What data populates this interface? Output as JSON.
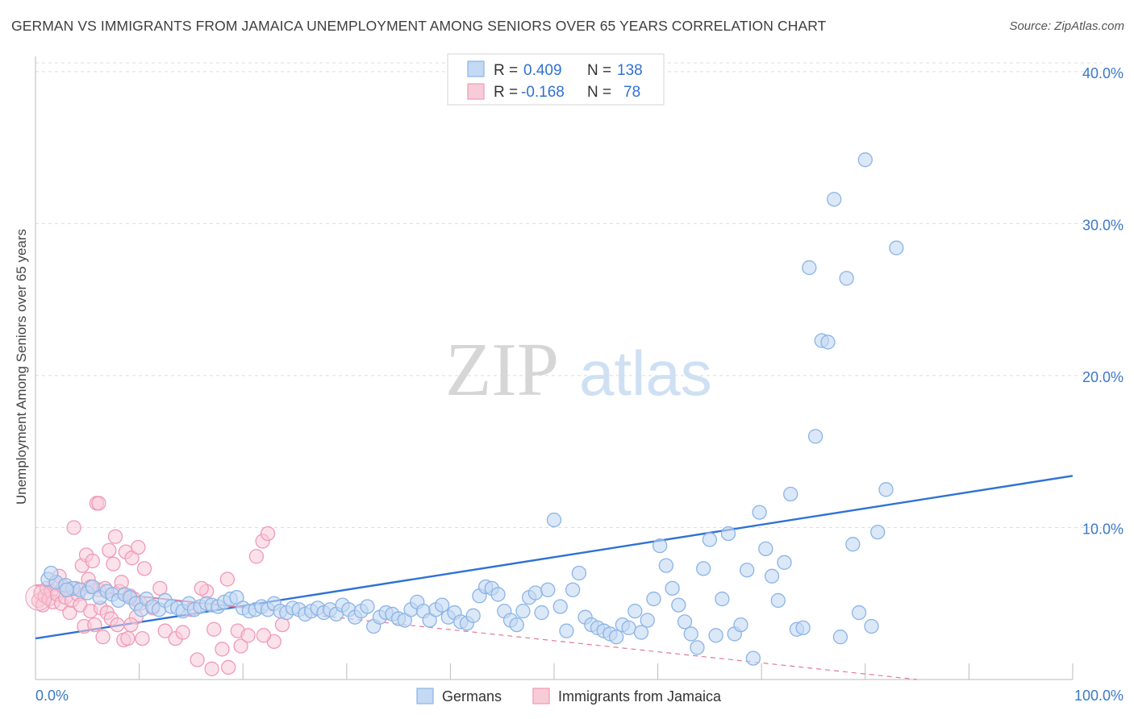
{
  "title": "GERMAN VS IMMIGRANTS FROM JAMAICA UNEMPLOYMENT AMONG SENIORS OVER 65 YEARS CORRELATION CHART",
  "source": "Source: ZipAtlas.com",
  "watermark": {
    "zip": "ZIP",
    "atlas": "atlas"
  },
  "colors": {
    "blue": "#8bb4e6",
    "blue_fill": "#c3d9f4",
    "blue_line": "#2f72d4",
    "pink": "#f09ab5",
    "pink_fill": "#f8cbd9",
    "pink_line": "#e37897",
    "value_text": "#2f72d4",
    "grid": "#dddddd"
  },
  "legend_top": {
    "rows": [
      {
        "r_label": "R =",
        "r_value": "0.409",
        "n_label": "N =",
        "n_value": "138"
      },
      {
        "r_label": "R =",
        "r_value": "-0.168",
        "n_label": "N =",
        "n_value": "78"
      }
    ]
  },
  "legend_bottom": {
    "items": [
      {
        "label": "Germans"
      },
      {
        "label": "Immigrants from Jamaica"
      }
    ]
  },
  "chart_data": {
    "type": "scatter",
    "title": "GERMAN VS IMMIGRANTS FROM JAMAICA UNEMPLOYMENT AMONG SENIORS OVER 65 YEARS CORRELATION CHART",
    "xlabel": "",
    "ylabel": "Unemployment Among Seniors over 65 years",
    "xlim": [
      0,
      100
    ],
    "ylim": [
      0,
      41
    ],
    "x_tick_labels": [
      "0.0%",
      "100.0%"
    ],
    "y_ticks": [
      10,
      20,
      30,
      40
    ],
    "y_tick_labels": [
      "10.0%",
      "20.0%",
      "30.0%",
      "40.0%"
    ],
    "grid": true,
    "legend_position": "top-center",
    "series": [
      {
        "name": "Germans",
        "color": "#8bb4e6",
        "r": 0.409,
        "n": 138,
        "trend": {
          "x": [
            0,
            100
          ],
          "y": [
            2.7,
            13.4
          ]
        },
        "points": [
          [
            1.2,
            6.6
          ],
          [
            2.0,
            6.4
          ],
          [
            2.9,
            6.2
          ],
          [
            3.6,
            6.0
          ],
          [
            4.3,
            5.9
          ],
          [
            5.0,
            5.7
          ],
          [
            5.5,
            6.1
          ],
          [
            6.2,
            5.4
          ],
          [
            6.9,
            5.8
          ],
          [
            7.4,
            5.6
          ],
          [
            8.0,
            5.2
          ],
          [
            8.6,
            5.6
          ],
          [
            9.1,
            5.4
          ],
          [
            9.7,
            5.0
          ],
          [
            10.2,
            4.6
          ],
          [
            10.7,
            5.3
          ],
          [
            11.3,
            4.8
          ],
          [
            11.9,
            4.6
          ],
          [
            12.5,
            5.2
          ],
          [
            13.1,
            4.8
          ],
          [
            13.7,
            4.7
          ],
          [
            14.2,
            4.5
          ],
          [
            14.8,
            5.0
          ],
          [
            15.3,
            4.6
          ],
          [
            15.9,
            4.8
          ],
          [
            16.5,
            5.0
          ],
          [
            17.0,
            4.9
          ],
          [
            17.6,
            4.8
          ],
          [
            18.2,
            5.1
          ],
          [
            18.8,
            5.3
          ],
          [
            19.4,
            5.4
          ],
          [
            20.0,
            4.7
          ],
          [
            20.6,
            4.5
          ],
          [
            21.2,
            4.6
          ],
          [
            21.8,
            4.8
          ],
          [
            22.4,
            4.6
          ],
          [
            23.0,
            5.0
          ],
          [
            23.6,
            4.5
          ],
          [
            24.2,
            4.4
          ],
          [
            24.8,
            4.7
          ],
          [
            25.4,
            4.6
          ],
          [
            26.0,
            4.3
          ],
          [
            26.6,
            4.5
          ],
          [
            27.2,
            4.7
          ],
          [
            27.8,
            4.4
          ],
          [
            28.4,
            4.6
          ],
          [
            29.0,
            4.3
          ],
          [
            29.6,
            4.9
          ],
          [
            30.2,
            4.6
          ],
          [
            30.8,
            4.1
          ],
          [
            31.4,
            4.5
          ],
          [
            32.0,
            4.8
          ],
          [
            32.6,
            3.5
          ],
          [
            33.2,
            4.1
          ],
          [
            33.8,
            4.4
          ],
          [
            34.4,
            4.3
          ],
          [
            35.0,
            4.0
          ],
          [
            35.6,
            3.9
          ],
          [
            36.2,
            4.6
          ],
          [
            36.8,
            5.1
          ],
          [
            37.4,
            4.5
          ],
          [
            38.0,
            3.9
          ],
          [
            38.6,
            4.6
          ],
          [
            39.2,
            4.9
          ],
          [
            39.8,
            4.1
          ],
          [
            40.4,
            4.4
          ],
          [
            41.0,
            3.8
          ],
          [
            41.6,
            3.7
          ],
          [
            42.2,
            4.2
          ],
          [
            42.8,
            5.5
          ],
          [
            43.4,
            6.1
          ],
          [
            44.0,
            6.0
          ],
          [
            44.6,
            5.6
          ],
          [
            45.2,
            4.5
          ],
          [
            45.8,
            3.9
          ],
          [
            46.4,
            3.6
          ],
          [
            47.0,
            4.5
          ],
          [
            47.6,
            5.4
          ],
          [
            48.2,
            5.7
          ],
          [
            48.8,
            4.4
          ],
          [
            49.4,
            5.9
          ],
          [
            50.0,
            10.5
          ],
          [
            50.6,
            4.8
          ],
          [
            51.2,
            3.2
          ],
          [
            51.8,
            5.9
          ],
          [
            52.4,
            7.0
          ],
          [
            53.0,
            4.1
          ],
          [
            53.6,
            3.6
          ],
          [
            54.2,
            3.4
          ],
          [
            54.8,
            3.2
          ],
          [
            55.4,
            3.0
          ],
          [
            56.0,
            2.8
          ],
          [
            56.6,
            3.6
          ],
          [
            57.2,
            3.4
          ],
          [
            57.8,
            4.5
          ],
          [
            58.4,
            3.1
          ],
          [
            59.0,
            3.9
          ],
          [
            59.6,
            5.3
          ],
          [
            60.2,
            8.8
          ],
          [
            60.8,
            7.5
          ],
          [
            61.4,
            6.0
          ],
          [
            62.0,
            4.9
          ],
          [
            62.6,
            3.8
          ],
          [
            63.2,
            3.0
          ],
          [
            63.8,
            2.1
          ],
          [
            64.4,
            7.3
          ],
          [
            65.0,
            9.2
          ],
          [
            65.6,
            2.9
          ],
          [
            66.2,
            5.3
          ],
          [
            66.8,
            9.6
          ],
          [
            67.4,
            3.0
          ],
          [
            68.0,
            3.6
          ],
          [
            68.6,
            7.2
          ],
          [
            69.2,
            1.4
          ],
          [
            69.8,
            11.0
          ],
          [
            70.4,
            8.6
          ],
          [
            71.0,
            6.8
          ],
          [
            71.6,
            5.2
          ],
          [
            72.2,
            7.7
          ],
          [
            72.8,
            12.2
          ],
          [
            73.4,
            3.3
          ],
          [
            74.0,
            3.4
          ],
          [
            74.6,
            27.1
          ],
          [
            75.2,
            16.0
          ],
          [
            75.8,
            22.3
          ],
          [
            76.4,
            22.2
          ],
          [
            77.0,
            31.6
          ],
          [
            77.6,
            2.8
          ],
          [
            78.2,
            26.4
          ],
          [
            78.8,
            8.9
          ],
          [
            79.4,
            4.4
          ],
          [
            80.0,
            34.2
          ],
          [
            80.6,
            3.5
          ],
          [
            81.2,
            9.7
          ],
          [
            82.0,
            12.5
          ],
          [
            83.0,
            28.4
          ],
          [
            1.5,
            7.0
          ],
          [
            3.0,
            5.9
          ]
        ]
      },
      {
        "name": "Immigrants from Jamaica",
        "color": "#f09ab5",
        "r": -0.168,
        "n": 78,
        "trend": {
          "x": [
            0,
            85
          ],
          "y": [
            6.2,
            0
          ]
        },
        "points": [
          [
            0.3,
            5.2
          ],
          [
            0.5,
            5.7
          ],
          [
            0.7,
            4.9
          ],
          [
            0.9,
            5.5
          ],
          [
            1.1,
            6.0
          ],
          [
            1.3,
            5.3
          ],
          [
            1.5,
            5.8
          ],
          [
            1.7,
            5.1
          ],
          [
            1.9,
            6.3
          ],
          [
            2.1,
            5.6
          ],
          [
            2.3,
            6.8
          ],
          [
            2.5,
            5.0
          ],
          [
            2.7,
            6.1
          ],
          [
            2.9,
            5.4
          ],
          [
            3.1,
            5.9
          ],
          [
            3.3,
            4.4
          ],
          [
            3.5,
            5.2
          ],
          [
            3.7,
            10.0
          ],
          [
            3.9,
            6.0
          ],
          [
            4.1,
            5.6
          ],
          [
            4.3,
            4.9
          ],
          [
            4.5,
            7.5
          ],
          [
            4.7,
            3.5
          ],
          [
            4.9,
            8.2
          ],
          [
            5.1,
            6.6
          ],
          [
            5.3,
            4.5
          ],
          [
            5.5,
            7.8
          ],
          [
            5.7,
            3.6
          ],
          [
            5.9,
            11.6
          ],
          [
            6.1,
            5.9
          ],
          [
            6.3,
            4.7
          ],
          [
            6.5,
            2.8
          ],
          [
            6.7,
            6.0
          ],
          [
            6.9,
            4.4
          ],
          [
            7.1,
            8.5
          ],
          [
            7.3,
            4.0
          ],
          [
            7.5,
            7.6
          ],
          [
            7.7,
            9.4
          ],
          [
            7.9,
            3.6
          ],
          [
            8.1,
            5.8
          ],
          [
            8.3,
            6.4
          ],
          [
            8.5,
            2.6
          ],
          [
            8.7,
            8.4
          ],
          [
            8.9,
            2.7
          ],
          [
            9.1,
            5.5
          ],
          [
            9.3,
            8.0
          ],
          [
            9.5,
            5.3
          ],
          [
            9.7,
            4.1
          ],
          [
            9.9,
            8.7
          ],
          [
            10.1,
            5.0
          ],
          [
            10.3,
            2.7
          ],
          [
            10.5,
            7.3
          ],
          [
            11.3,
            4.7
          ],
          [
            12.0,
            6.0
          ],
          [
            12.5,
            3.2
          ],
          [
            13.5,
            2.7
          ],
          [
            14.2,
            3.1
          ],
          [
            15.0,
            4.6
          ],
          [
            15.6,
            1.3
          ],
          [
            16.5,
            5.8
          ],
          [
            17.2,
            3.3
          ],
          [
            18.0,
            2.0
          ],
          [
            18.6,
            0.8
          ],
          [
            19.5,
            3.2
          ],
          [
            19.8,
            2.2
          ],
          [
            20.5,
            2.9
          ],
          [
            21.3,
            8.1
          ],
          [
            21.9,
            9.1
          ],
          [
            22.4,
            9.6
          ],
          [
            23.0,
            2.5
          ],
          [
            23.8,
            3.6
          ],
          [
            18.5,
            6.6
          ],
          [
            17.0,
            0.7
          ],
          [
            16.0,
            6.0
          ],
          [
            6.1,
            11.6
          ],
          [
            9.2,
            3.6
          ],
          [
            5.3,
            6.1
          ],
          [
            22.0,
            2.9
          ]
        ]
      }
    ]
  }
}
